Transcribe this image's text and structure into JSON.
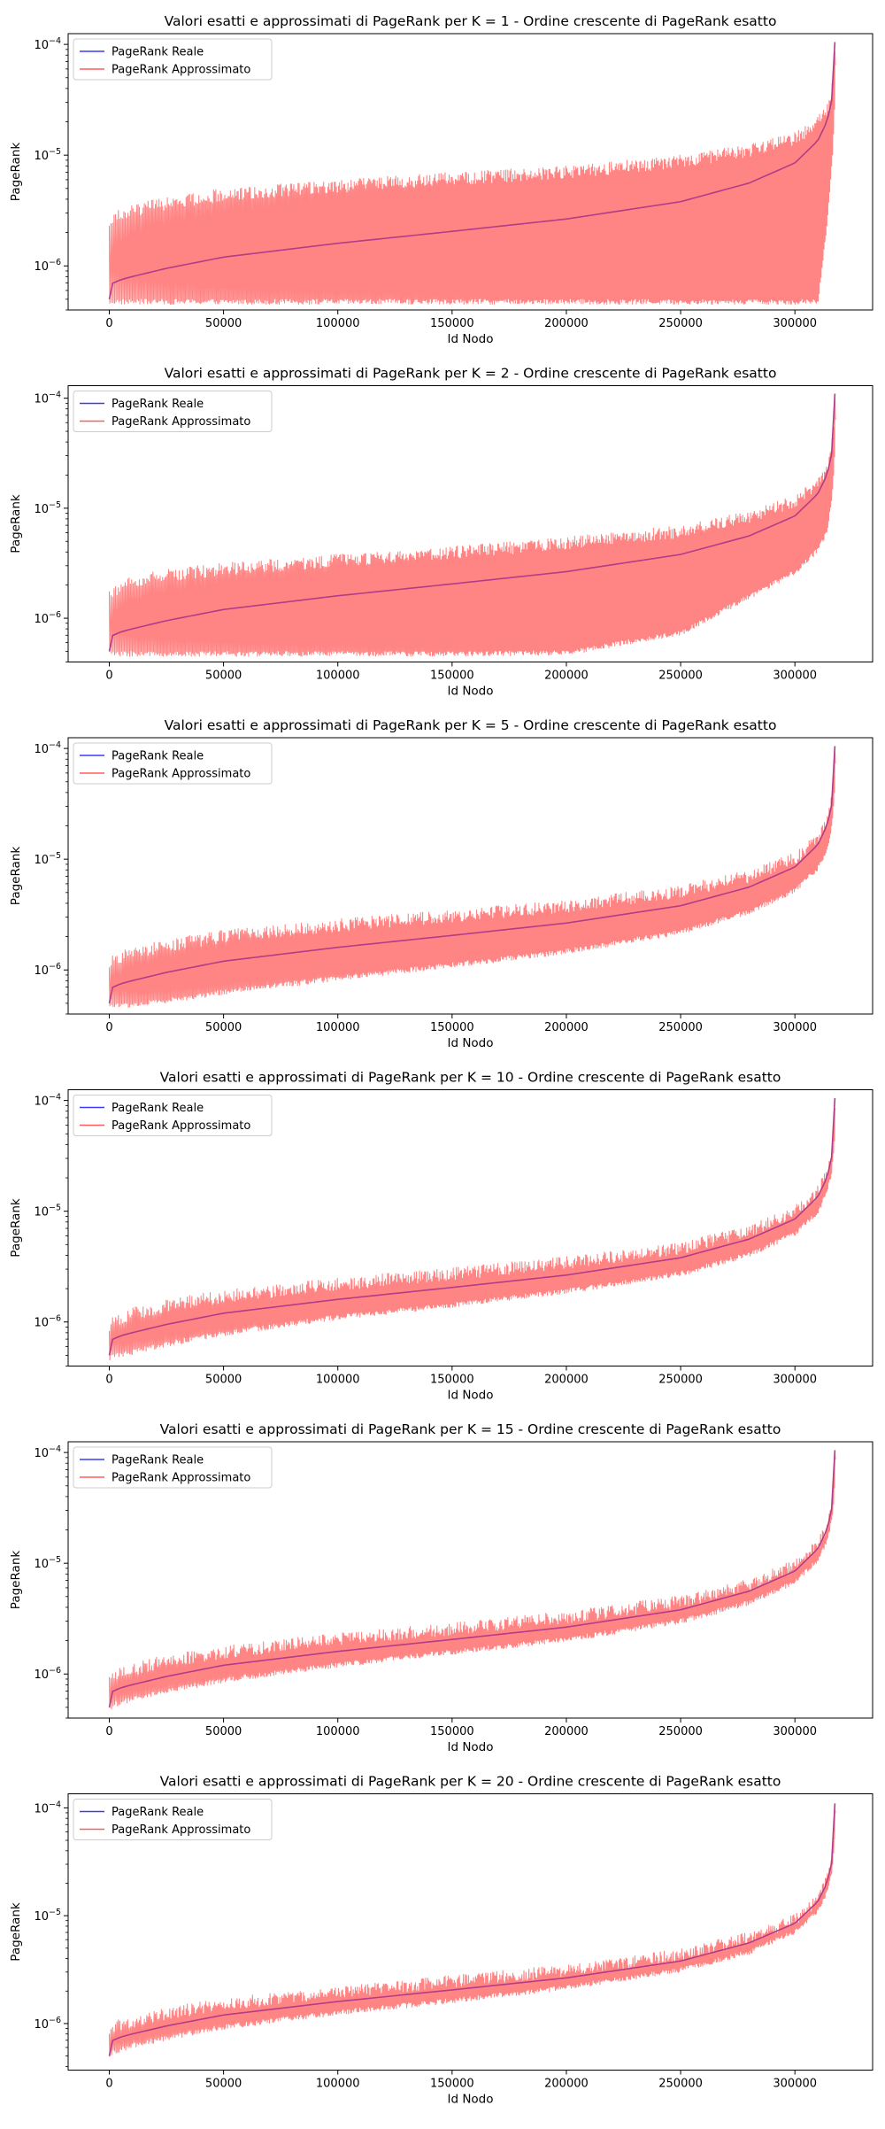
{
  "figure": {
    "colors": {
      "exact": "#3b3bf7",
      "approx": "#ff5c5c",
      "approx_fill": "#ff7f7f",
      "overlap": "#b33c86"
    }
  },
  "chart_data": [
    {
      "type": "line",
      "title": "Valori esatti e approssimati di PageRank per K = 1 - Ordine crescente di PageRank esatto",
      "xlabel": "Id Nodo",
      "ylabel": "PageRank",
      "xlim": [
        -18000,
        334000
      ],
      "ylim": [
        4e-07,
        0.000125
      ],
      "yscale": "log",
      "x_ticks": [
        0,
        50000,
        100000,
        150000,
        200000,
        250000,
        300000
      ],
      "x_tick_labels": [
        "0",
        "50000",
        "100000",
        "150000",
        "200000",
        "250000",
        "300000"
      ],
      "y_ticks": [
        1e-06,
        1e-05,
        0.0001
      ],
      "y_tick_labels": [
        "10",
        "10",
        "10"
      ],
      "y_tick_exponents": [
        "−6",
        "−5",
        "−4"
      ],
      "legend": {
        "position": "upper left",
        "entries": [
          "PageRank Reale",
          "PageRank Approssimato"
        ]
      },
      "grid": false,
      "series": [
        {
          "name": "PageRank Reale",
          "x": [
            0,
            1000,
            5000,
            10000,
            25000,
            50000,
            100000,
            150000,
            200000,
            250000,
            280000,
            300000,
            310000,
            314000,
            316000,
            317000,
            317500
          ],
          "y": [
            5e-07,
            6.9e-07,
            7.5e-07,
            8e-07,
            9.5e-07,
            1.2e-06,
            1.6e-06,
            2.05e-06,
            2.65e-06,
            3.8e-06,
            5.6e-06,
            8.5e-06,
            1.35e-05,
            2e-05,
            3e-05,
            5e-05,
            0.000105
          ]
        },
        {
          "name": "PageRank Approssimato",
          "x": [
            0,
            1000,
            5000,
            10000,
            25000,
            50000,
            100000,
            150000,
            200000,
            250000,
            280000,
            300000,
            310000,
            314000,
            316000,
            317000,
            317500
          ],
          "y_lower": [
            4.5e-07,
            4.5e-07,
            4.5e-07,
            4.5e-07,
            4.5e-07,
            4.5e-07,
            4.5e-07,
            4.5e-07,
            4.5e-07,
            4.5e-07,
            4.5e-07,
            4.5e-07,
            4.5e-07,
            2.5e-06,
            8e-06,
            2e-05,
            6e-05
          ],
          "y_upper": [
            2.8e-06,
            3e-06,
            3.3e-06,
            3.6e-06,
            4.2e-06,
            5e-06,
            6e-06,
            7e-06,
            8e-06,
            1e-05,
            1.25e-05,
            1.6e-05,
            2.2e-05,
            3e-05,
            4e-05,
            7e-05,
            0.000105
          ]
        }
      ]
    },
    {
      "type": "line",
      "title": "Valori esatti e approssimati di PageRank per K = 2 - Ordine crescente di PageRank esatto",
      "xlabel": "Id Nodo",
      "ylabel": "PageRank",
      "xlim": [
        -18000,
        334000
      ],
      "ylim": [
        4e-07,
        0.00013
      ],
      "yscale": "log",
      "x_ticks": [
        0,
        50000,
        100000,
        150000,
        200000,
        250000,
        300000
      ],
      "x_tick_labels": [
        "0",
        "50000",
        "100000",
        "150000",
        "200000",
        "250000",
        "300000"
      ],
      "y_ticks": [
        1e-06,
        1e-05,
        0.0001
      ],
      "y_tick_labels": [
        "10",
        "10",
        "10"
      ],
      "y_tick_exponents": [
        "−6",
        "−5",
        "−4"
      ],
      "legend": {
        "position": "upper left",
        "entries": [
          "PageRank Reale",
          "PageRank Approssimato"
        ]
      },
      "grid": false,
      "series": [
        {
          "name": "PageRank Reale",
          "x": [
            0,
            1000,
            5000,
            10000,
            25000,
            50000,
            100000,
            150000,
            200000,
            250000,
            280000,
            300000,
            310000,
            314000,
            316000,
            317000,
            317500
          ],
          "y": [
            5e-07,
            6.9e-07,
            7.5e-07,
            8e-07,
            9.5e-07,
            1.2e-06,
            1.6e-06,
            2.05e-06,
            2.65e-06,
            3.8e-06,
            5.6e-06,
            8.5e-06,
            1.35e-05,
            2e-05,
            3e-05,
            5e-05,
            0.00011
          ]
        },
        {
          "name": "PageRank Approssimato",
          "x": [
            0,
            1000,
            5000,
            10000,
            25000,
            50000,
            100000,
            150000,
            200000,
            250000,
            280000,
            300000,
            310000,
            314000,
            316000,
            317000,
            317500
          ],
          "y_lower": [
            4.5e-07,
            4.5e-07,
            4.5e-07,
            4.5e-07,
            4.5e-07,
            4.5e-07,
            4.5e-07,
            4.5e-07,
            4.6e-07,
            7e-07,
            1.5e-06,
            2.5e-06,
            4e-06,
            6e-06,
            1.2e-05,
            2.5e-05,
            6e-05
          ],
          "y_upper": [
            1.8e-06,
            2e-06,
            2.2e-06,
            2.4e-06,
            2.8e-06,
            3.2e-06,
            3.8e-06,
            4.5e-06,
            5.5e-06,
            7e-06,
            9.5e-06,
            1.3e-05,
            1.9e-05,
            2.7e-05,
            3.8e-05,
            6.5e-05,
            0.00011
          ]
        }
      ]
    },
    {
      "type": "line",
      "title": "Valori esatti e approssimati di PageRank per K = 5 - Ordine crescente di PageRank esatto",
      "xlabel": "Id Nodo",
      "ylabel": "PageRank",
      "xlim": [
        -18000,
        334000
      ],
      "ylim": [
        4e-07,
        0.000125
      ],
      "yscale": "log",
      "x_ticks": [
        0,
        50000,
        100000,
        150000,
        200000,
        250000,
        300000
      ],
      "x_tick_labels": [
        "0",
        "50000",
        "100000",
        "150000",
        "200000",
        "250000",
        "300000"
      ],
      "y_ticks": [
        1e-06,
        1e-05,
        0.0001
      ],
      "y_tick_labels": [
        "10",
        "10",
        "10"
      ],
      "y_tick_exponents": [
        "−6",
        "−5",
        "−4"
      ],
      "legend": {
        "position": "upper left",
        "entries": [
          "PageRank Reale",
          "PageRank Approssimato"
        ]
      },
      "grid": false,
      "series": [
        {
          "name": "PageRank Reale",
          "x": [
            0,
            1000,
            5000,
            10000,
            25000,
            50000,
            100000,
            150000,
            200000,
            250000,
            280000,
            300000,
            310000,
            314000,
            316000,
            317000,
            317500
          ],
          "y": [
            5e-07,
            6.9e-07,
            7.5e-07,
            8e-07,
            9.5e-07,
            1.2e-06,
            1.6e-06,
            2.05e-06,
            2.65e-06,
            3.8e-06,
            5.6e-06,
            8.5e-06,
            1.35e-05,
            2e-05,
            3e-05,
            5e-05,
            0.000105
          ]
        },
        {
          "name": "PageRank Approssimato",
          "x": [
            0,
            1000,
            5000,
            10000,
            25000,
            50000,
            100000,
            150000,
            200000,
            250000,
            280000,
            300000,
            310000,
            314000,
            316000,
            317000,
            317500
          ],
          "y_lower": [
            4.5e-07,
            4.5e-07,
            4.5e-07,
            4.6e-07,
            5e-07,
            6e-07,
            8e-07,
            1.05e-06,
            1.4e-06,
            2.1e-06,
            3.2e-06,
            5e-06,
            8e-06,
            1.2e-05,
            1.9e-05,
            3.3e-05,
            7e-05
          ],
          "y_upper": [
            1.2e-06,
            1.35e-06,
            1.5e-06,
            1.65e-06,
            1.9e-06,
            2.3e-06,
            2.9e-06,
            3.5e-06,
            4.3e-06,
            5.8e-06,
            8e-06,
            1.15e-05,
            1.75e-05,
            2.6e-05,
            3.8e-05,
            6.2e-05,
            0.000105
          ]
        }
      ]
    },
    {
      "type": "line",
      "title": "Valori esatti e approssimati di PageRank per K = 10 - Ordine crescente di PageRank esatto",
      "xlabel": "Id Nodo",
      "ylabel": "PageRank",
      "xlim": [
        -18000,
        334000
      ],
      "ylim": [
        4e-07,
        0.000125
      ],
      "yscale": "log",
      "x_ticks": [
        0,
        50000,
        100000,
        150000,
        200000,
        250000,
        300000
      ],
      "x_tick_labels": [
        "0",
        "50000",
        "100000",
        "150000",
        "200000",
        "250000",
        "300000"
      ],
      "y_ticks": [
        1e-06,
        1e-05,
        0.0001
      ],
      "y_tick_labels": [
        "10",
        "10",
        "10"
      ],
      "y_tick_exponents": [
        "−6",
        "−5",
        "−4"
      ],
      "legend": {
        "position": "upper left",
        "entries": [
          "PageRank Reale",
          "PageRank Approssimato"
        ]
      },
      "grid": false,
      "series": [
        {
          "name": "PageRank Reale",
          "x": [
            0,
            1000,
            5000,
            10000,
            25000,
            50000,
            100000,
            150000,
            200000,
            250000,
            280000,
            300000,
            310000,
            314000,
            316000,
            317000,
            317500
          ],
          "y": [
            5e-07,
            6.9e-07,
            7.5e-07,
            8e-07,
            9.5e-07,
            1.2e-06,
            1.6e-06,
            2.05e-06,
            2.65e-06,
            3.8e-06,
            5.6e-06,
            8.5e-06,
            1.35e-05,
            2e-05,
            3e-05,
            5e-05,
            0.000105
          ]
        },
        {
          "name": "PageRank Approssimato",
          "x": [
            0,
            1000,
            5000,
            10000,
            25000,
            50000,
            100000,
            150000,
            200000,
            250000,
            280000,
            300000,
            310000,
            314000,
            316000,
            317000,
            317500
          ],
          "y_lower": [
            4.5e-07,
            4.6e-07,
            4.8e-07,
            5.1e-07,
            6e-07,
            7.5e-07,
            1.05e-06,
            1.35e-06,
            1.8e-06,
            2.6e-06,
            3.9e-06,
            6e-06,
            9.5e-06,
            1.45e-05,
            2.2e-05,
            3.8e-05,
            8e-05
          ],
          "y_upper": [
            1.05e-06,
            1.15e-06,
            1.25e-06,
            1.35e-06,
            1.6e-06,
            1.95e-06,
            2.5e-06,
            3.1e-06,
            3.9e-06,
            5.3e-06,
            7.6e-06,
            1.12e-05,
            1.7e-05,
            2.5e-05,
            3.7e-05,
            6e-05,
            0.000105
          ]
        }
      ]
    },
    {
      "type": "line",
      "title": "Valori esatti e approssimati di PageRank per K = 15 - Ordine crescente di PageRank esatto",
      "xlabel": "Id Nodo",
      "ylabel": "PageRank",
      "xlim": [
        -18000,
        334000
      ],
      "ylim": [
        4e-07,
        0.000125
      ],
      "yscale": "log",
      "x_ticks": [
        0,
        50000,
        100000,
        150000,
        200000,
        250000,
        300000
      ],
      "x_tick_labels": [
        "0",
        "50000",
        "100000",
        "150000",
        "200000",
        "250000",
        "300000"
      ],
      "y_ticks": [
        1e-06,
        1e-05,
        0.0001
      ],
      "y_tick_labels": [
        "10",
        "10",
        "10"
      ],
      "y_tick_exponents": [
        "−6",
        "−5",
        "−4"
      ],
      "legend": {
        "position": "upper left",
        "entries": [
          "PageRank Reale",
          "PageRank Approssimato"
        ]
      },
      "grid": false,
      "series": [
        {
          "name": "PageRank Reale",
          "x": [
            0,
            1000,
            5000,
            10000,
            25000,
            50000,
            100000,
            150000,
            200000,
            250000,
            280000,
            300000,
            310000,
            314000,
            316000,
            317000,
            317500
          ],
          "y": [
            5e-07,
            6.9e-07,
            7.5e-07,
            8e-07,
            9.5e-07,
            1.2e-06,
            1.6e-06,
            2.05e-06,
            2.65e-06,
            3.8e-06,
            5.6e-06,
            8.5e-06,
            1.35e-05,
            2e-05,
            3e-05,
            5e-05,
            0.000105
          ]
        },
        {
          "name": "PageRank Approssimato",
          "x": [
            0,
            1000,
            5000,
            10000,
            25000,
            50000,
            100000,
            150000,
            200000,
            250000,
            280000,
            300000,
            310000,
            314000,
            316000,
            317000,
            317500
          ],
          "y_lower": [
            4.6e-07,
            4.9e-07,
            5.3e-07,
            5.6e-07,
            6.6e-07,
            8.4e-07,
            1.15e-06,
            1.5e-06,
            1.95e-06,
            2.85e-06,
            4.2e-06,
            6.5e-06,
            1.02e-05,
            1.55e-05,
            2.35e-05,
            4e-05,
            8.5e-05
          ],
          "y_upper": [
            1e-06,
            1.1e-06,
            1.15e-06,
            1.25e-06,
            1.5e-06,
            1.8e-06,
            2.35e-06,
            2.9e-06,
            3.7e-06,
            5.1e-06,
            7.3e-06,
            1.08e-05,
            1.65e-05,
            2.45e-05,
            3.6e-05,
            5.9e-05,
            0.000105
          ]
        }
      ]
    },
    {
      "type": "line",
      "title": "Valori esatti e approssimati di PageRank per K = 20 - Ordine crescente di PageRank esatto",
      "xlabel": "Id Nodo",
      "ylabel": "PageRank",
      "xlim": [
        -18000,
        334000
      ],
      "ylim": [
        3.7e-07,
        0.000135
      ],
      "yscale": "log",
      "x_ticks": [
        0,
        50000,
        100000,
        150000,
        200000,
        250000,
        300000
      ],
      "x_tick_labels": [
        "0",
        "50000",
        "100000",
        "150000",
        "200000",
        "250000",
        "300000"
      ],
      "y_ticks": [
        1e-06,
        1e-05,
        0.0001
      ],
      "y_tick_labels": [
        "10",
        "10",
        "10"
      ],
      "y_tick_exponents": [
        "−6",
        "−5",
        "−4"
      ],
      "legend": {
        "position": "upper left",
        "entries": [
          "PageRank Reale",
          "PageRank Approssimato"
        ]
      },
      "grid": false,
      "series": [
        {
          "name": "PageRank Reale",
          "x": [
            0,
            1000,
            5000,
            10000,
            25000,
            50000,
            100000,
            150000,
            200000,
            250000,
            280000,
            300000,
            310000,
            314000,
            316000,
            317000,
            317500
          ],
          "y": [
            5e-07,
            6.9e-07,
            7.5e-07,
            8e-07,
            9.5e-07,
            1.2e-06,
            1.6e-06,
            2.05e-06,
            2.65e-06,
            3.8e-06,
            5.6e-06,
            8.5e-06,
            1.35e-05,
            2e-05,
            3e-05,
            5e-05,
            0.00011
          ]
        },
        {
          "name": "PageRank Approssimato",
          "x": [
            0,
            1000,
            5000,
            10000,
            25000,
            50000,
            100000,
            150000,
            200000,
            250000,
            280000,
            300000,
            310000,
            314000,
            316000,
            317000,
            317500
          ],
          "y_lower": [
            4.8e-07,
            5.1e-07,
            5.5e-07,
            5.9e-07,
            7e-07,
            8.8e-07,
            1.2e-06,
            1.55e-06,
            2.05e-06,
            3e-06,
            4.4e-06,
            6.8e-06,
            1.07e-05,
            1.6e-05,
            2.45e-05,
            4.1e-05,
            9e-05
          ],
          "y_upper": [
            9.5e-07,
            1.05e-06,
            1.1e-06,
            1.2e-06,
            1.42e-06,
            1.72e-06,
            2.25e-06,
            2.8e-06,
            3.55e-06,
            4.9e-06,
            7.1e-06,
            1.05e-05,
            1.6e-05,
            2.4e-05,
            3.5e-05,
            5.8e-05,
            0.00011
          ]
        }
      ]
    }
  ]
}
